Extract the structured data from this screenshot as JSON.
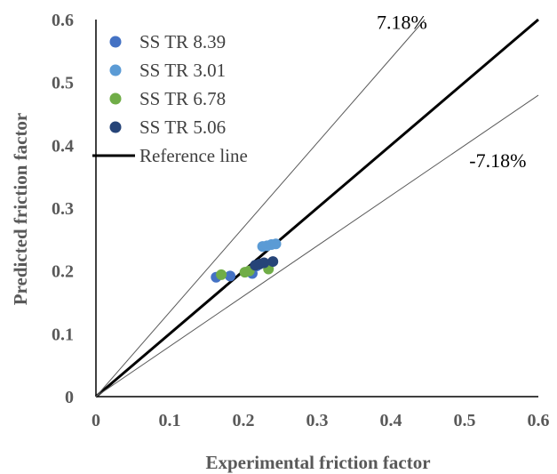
{
  "chart_data": {
    "type": "scatter",
    "title": "",
    "xlabel": "Experimental friction factor",
    "ylabel": "Predicted friction factor",
    "xlim": [
      0,
      0.6
    ],
    "ylim": [
      0,
      0.6
    ],
    "x_ticks": [
      "0",
      "0.1",
      "0.2",
      "0.3",
      "0.4",
      "0.5",
      "0.6"
    ],
    "y_ticks": [
      "0",
      "0.1",
      "0.2",
      "0.3",
      "0.4",
      "0.5",
      "0.6"
    ],
    "grid": false,
    "legend_position": "top-left",
    "series": [
      {
        "name": "SS TR 8.39",
        "color": "#4472C4",
        "points": [
          [
            0.163,
            0.19
          ],
          [
            0.182,
            0.192
          ],
          [
            0.212,
            0.196
          ],
          [
            0.218,
            0.208
          ]
        ]
      },
      {
        "name": "SS TR 3.01",
        "color": "#5B9BD5",
        "points": [
          [
            0.226,
            0.239
          ],
          [
            0.232,
            0.24
          ],
          [
            0.238,
            0.242
          ],
          [
            0.244,
            0.243
          ]
        ]
      },
      {
        "name": "SS TR 6.78",
        "color": "#70AD47",
        "points": [
          [
            0.17,
            0.194
          ],
          [
            0.202,
            0.198
          ],
          [
            0.208,
            0.2
          ],
          [
            0.234,
            0.203
          ]
        ]
      },
      {
        "name": "SS TR 5.06",
        "color": "#264478",
        "points": [
          [
            0.216,
            0.209
          ],
          [
            0.222,
            0.211
          ],
          [
            0.228,
            0.213
          ],
          [
            0.24,
            0.215
          ]
        ]
      }
    ],
    "reference_lines": [
      {
        "name": "Reference line",
        "slope": 1.0,
        "style": "thick",
        "color": "#000000"
      },
      {
        "label": "7.18%",
        "slope": 1.3455,
        "style": "thin",
        "color": "#595959",
        "label_at": [
          0.415,
          0.585
        ]
      },
      {
        "label": "-7.18%",
        "slope": 0.7994,
        "style": "thin",
        "color": "#595959",
        "label_at": [
          0.545,
          0.365
        ]
      }
    ]
  }
}
